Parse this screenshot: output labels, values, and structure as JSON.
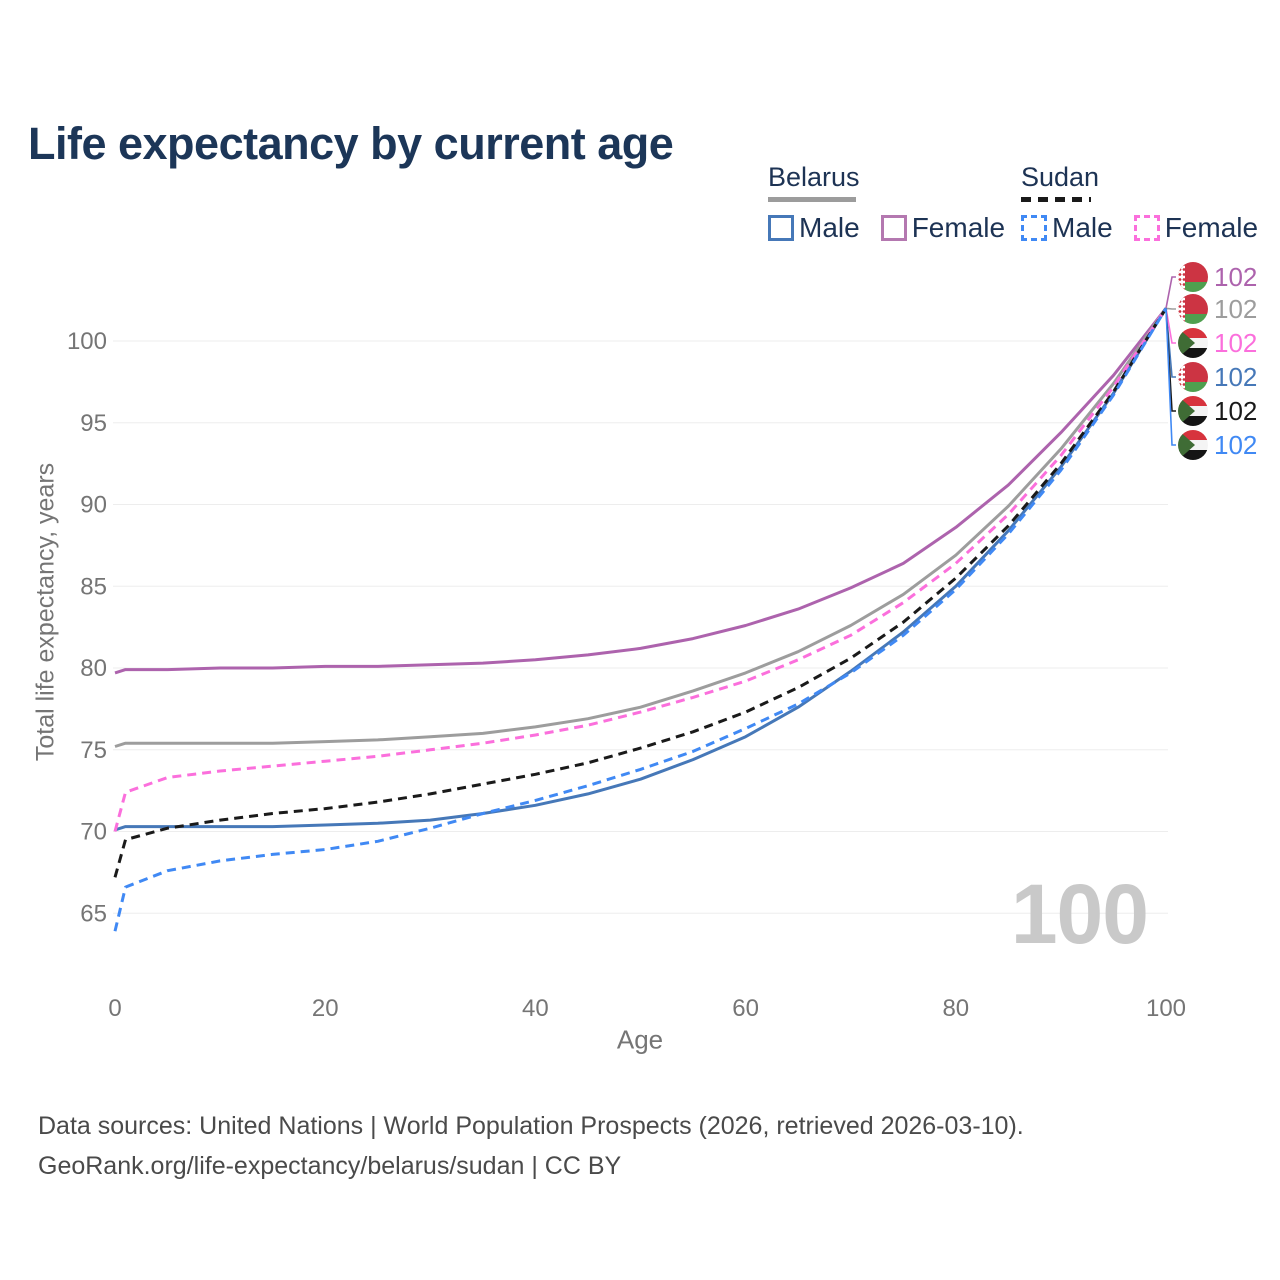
{
  "title": {
    "text": "Life expectancy by current age",
    "color": "#1c3658"
  },
  "legend": {
    "text_color": "#1d3354",
    "groups": [
      {
        "name": "Belarus",
        "underline_style": "solid",
        "underline_color": "#9c9c9c",
        "items": [
          {
            "label": "Male",
            "swatch_color": "#4678b8",
            "swatch_style": "solid"
          },
          {
            "label": "Female",
            "swatch_color": "#b478b0",
            "swatch_style": "solid"
          }
        ]
      },
      {
        "name": "Sudan",
        "underline_style": "dashed",
        "underline_color": "#1a1a1a",
        "items": [
          {
            "label": "Male",
            "swatch_color": "#4089f4",
            "swatch_style": "dashed"
          },
          {
            "label": "Female",
            "swatch_color": "#fb6fdc",
            "swatch_style": "dashed"
          }
        ]
      }
    ]
  },
  "axis": {
    "tick_color": "#757575",
    "grid_color": "#ededed"
  },
  "chart_data": {
    "type": "line",
    "title": "Life expectancy by current age",
    "xlabel": "Age",
    "ylabel": "Total life expectancy, years",
    "xlim": [
      0,
      100
    ],
    "ylim": [
      63,
      103
    ],
    "x_ticks": [
      0,
      20,
      40,
      60,
      80,
      100
    ],
    "y_ticks": [
      65,
      70,
      75,
      80,
      85,
      90,
      95,
      100
    ],
    "grid": true,
    "legend_position": "top-right",
    "x": [
      0,
      1,
      5,
      10,
      15,
      20,
      25,
      30,
      35,
      40,
      45,
      50,
      55,
      60,
      65,
      70,
      75,
      80,
      85,
      90,
      95,
      100
    ],
    "series": [
      {
        "id": "belarus-female",
        "name": "Belarus Female",
        "country": "Belarus",
        "sex": "Female",
        "color": "#ad63ad",
        "dashed": false,
        "flag": "belarus",
        "row": 0,
        "end_label": "102",
        "values": [
          79.7,
          79.9,
          79.9,
          80.0,
          80.0,
          80.1,
          80.1,
          80.2,
          80.3,
          80.5,
          80.8,
          81.2,
          81.8,
          82.6,
          83.6,
          84.9,
          86.4,
          88.6,
          91.2,
          94.4,
          97.9,
          102
        ]
      },
      {
        "id": "belarus-total",
        "name": "Belarus",
        "country": "Belarus",
        "sex": "Both",
        "color": "#9d9d9d",
        "dashed": false,
        "flag": "belarus",
        "row": 1,
        "end_label": "102",
        "values": [
          75.2,
          75.4,
          75.4,
          75.4,
          75.4,
          75.5,
          75.6,
          75.8,
          76.0,
          76.4,
          76.9,
          77.6,
          78.6,
          79.7,
          81.0,
          82.6,
          84.5,
          86.9,
          89.9,
          93.4,
          97.4,
          102
        ]
      },
      {
        "id": "belarus-male",
        "name": "Belarus Male",
        "country": "Belarus",
        "sex": "Male",
        "color": "#4678b8",
        "dashed": false,
        "flag": "belarus",
        "row": 3,
        "end_label": "102",
        "values": [
          70.1,
          70.3,
          70.3,
          70.3,
          70.3,
          70.4,
          70.5,
          70.7,
          71.1,
          71.6,
          72.3,
          73.2,
          74.4,
          75.8,
          77.6,
          79.8,
          82.2,
          85.0,
          88.4,
          92.3,
          96.8,
          102
        ]
      },
      {
        "id": "sudan-female",
        "name": "Sudan Female",
        "country": "Sudan",
        "sex": "Female",
        "color": "#fb6fdc",
        "dashed": true,
        "flag": "sudan",
        "row": 2,
        "end_label": "102",
        "values": [
          70.0,
          72.4,
          73.3,
          73.7,
          74.0,
          74.3,
          74.6,
          75.0,
          75.4,
          75.9,
          76.5,
          77.3,
          78.2,
          79.2,
          80.5,
          82.0,
          84.0,
          86.4,
          89.4,
          93.0,
          97.2,
          102
        ]
      },
      {
        "id": "sudan-total",
        "name": "Sudan",
        "country": "Sudan",
        "sex": "Both",
        "color": "#1a1a1a",
        "dashed": true,
        "flag": "sudan",
        "row": 4,
        "end_label": "102",
        "values": [
          67.2,
          69.5,
          70.2,
          70.7,
          71.1,
          71.4,
          71.8,
          72.3,
          72.9,
          73.5,
          74.2,
          75.1,
          76.1,
          77.3,
          78.8,
          80.6,
          82.8,
          85.5,
          88.7,
          92.5,
          96.9,
          102
        ]
      },
      {
        "id": "sudan-male",
        "name": "Sudan Male",
        "country": "Sudan",
        "sex": "Male",
        "color": "#4089f4",
        "dashed": true,
        "flag": "sudan",
        "row": 5,
        "end_label": "102",
        "values": [
          63.9,
          66.6,
          67.6,
          68.2,
          68.6,
          68.9,
          69.4,
          70.2,
          71.1,
          71.9,
          72.8,
          73.8,
          74.9,
          76.3,
          77.8,
          79.7,
          82.0,
          84.8,
          88.2,
          92.1,
          96.7,
          102
        ]
      }
    ]
  },
  "watermark": {
    "text": "100",
    "color": "#c9c9c9"
  },
  "footer": {
    "color": "#4a4a4a",
    "lines": [
      "Data sources: United Nations | World Population Prospects (2026, retrieved 2026-03-10).",
      "GeoRank.org/life-expectancy/belarus/sudan | CC BY"
    ]
  }
}
